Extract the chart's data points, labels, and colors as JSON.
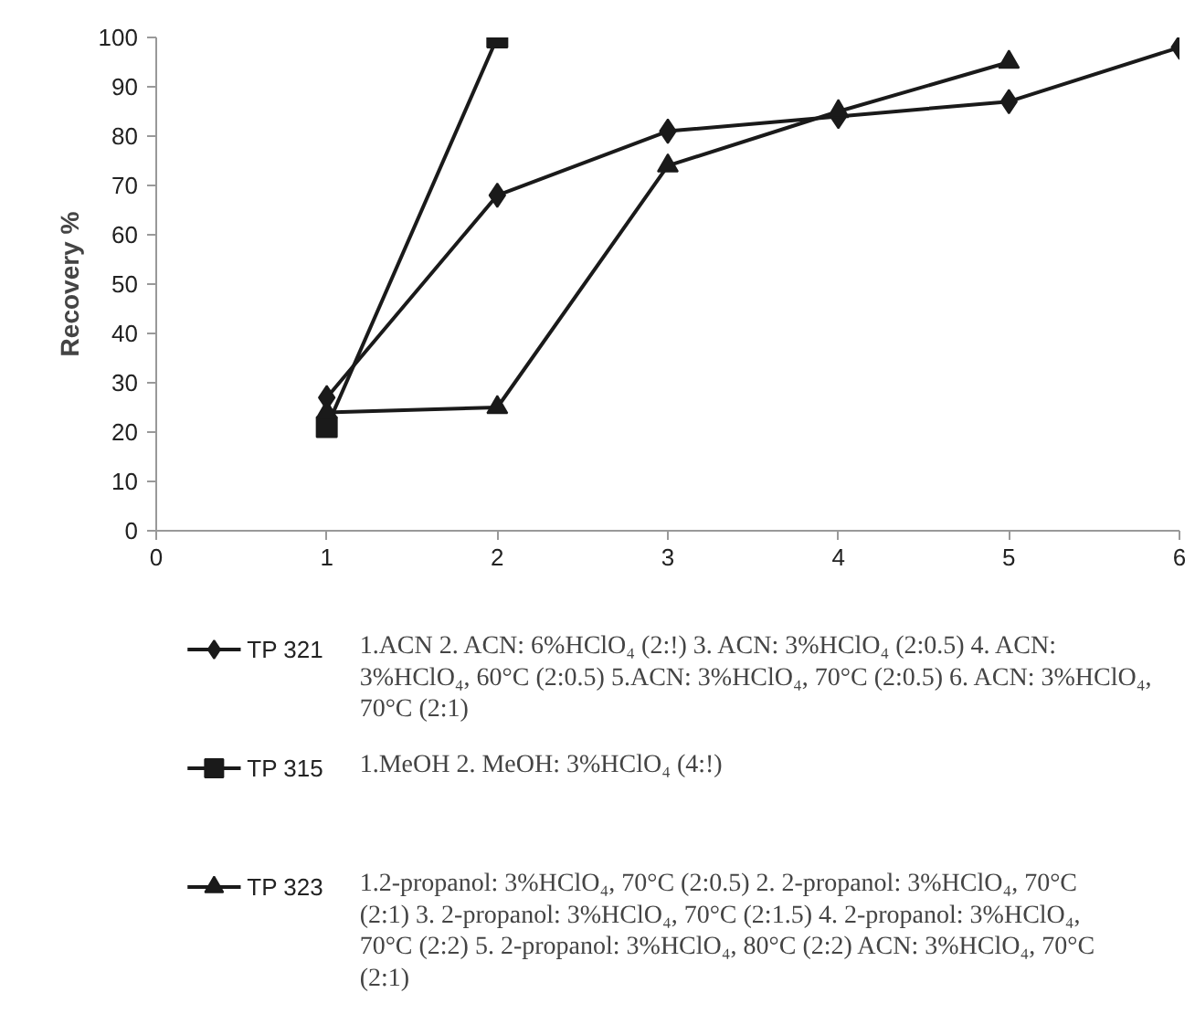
{
  "chart_data": {
    "type": "line",
    "ylabel": "Recovery %",
    "x": [
      1,
      2,
      3,
      4,
      5,
      6
    ],
    "xlim": [
      0,
      6
    ],
    "xticks": [
      0,
      1,
      2,
      3,
      4,
      5,
      6
    ],
    "ylim": [
      0,
      100
    ],
    "yticks": [
      0,
      10,
      20,
      30,
      40,
      50,
      60,
      70,
      80,
      90,
      100
    ],
    "series": [
      {
        "name": "TP 321",
        "color": "#1a1a1a",
        "marker": "diamond",
        "values": [
          27,
          68,
          81,
          84,
          87,
          98
        ]
      },
      {
        "name": "TP 315",
        "color": "#1a1a1a",
        "marker": "square",
        "x": [
          1,
          2
        ],
        "values": [
          21,
          100
        ]
      },
      {
        "name": "TP 323",
        "color": "#1a1a1a",
        "marker": "triangle",
        "x": [
          1,
          2,
          3,
          4,
          5
        ],
        "values": [
          24,
          25,
          74,
          85,
          95
        ]
      }
    ],
    "legend": "bottom",
    "grid": false,
    "annotations": [
      "1.ACN   2. ACN: 6%HClO₄ (2:!)  3. ACN: 3%HClO₄ (2:0.5) 4. ACN: 3%HClO₄, 60°C (2:0.5) 5.ACN: 3%HClO₄, 70°C (2:0.5)  6. ACN: 3%HClO₄, 70°C (2:1)",
      "1.MeOH   2. MeOH: 3%HClO₄ (4:!)",
      "1.2-propanol: 3%HClO₄, 70°C (2:0.5)  2. 2-propanol: 3%HClO₄, 70°C (2:1) 3. 2-propanol: 3%HClO₄, 70°C (2:1.5)  4. 2-propanol: 3%HClO₄, 70°C (2:2) 5. 2-propanol: 3%HClO₄, 80°C (2:2) ACN: 3%HClO₄, 70°C (2:1)"
    ]
  }
}
